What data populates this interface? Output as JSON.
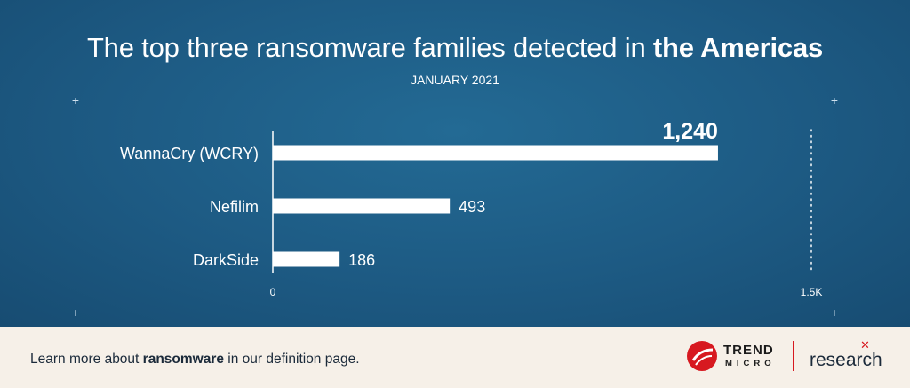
{
  "title": {
    "prefix": "The top three ransomware families detected in ",
    "emphasis": "the Americas"
  },
  "subtitle": "JANUARY 2021",
  "chart_data": {
    "type": "bar",
    "orientation": "horizontal",
    "categories": [
      "WannaCry (WCRY)",
      "Nefilim",
      "DarkSide"
    ],
    "values": [
      1240,
      493,
      186
    ],
    "value_labels": [
      "1,240",
      "493",
      "186"
    ],
    "xlim": [
      0,
      1500
    ],
    "x_tick_labels": [
      "0",
      "1.5K"
    ],
    "grid": false,
    "colors": {
      "bar": "#ffffff",
      "background": "#1e5a82",
      "label": "#ffffff",
      "axis": "#ffffff"
    }
  },
  "footer": {
    "text_prefix": "Learn more about ",
    "text_emphasis": "ransomware",
    "text_suffix": " in our definition page.",
    "brand_trend": "TREND",
    "brand_micro": "MICRO",
    "brand_research": "research",
    "brand_color": "#d71920"
  }
}
